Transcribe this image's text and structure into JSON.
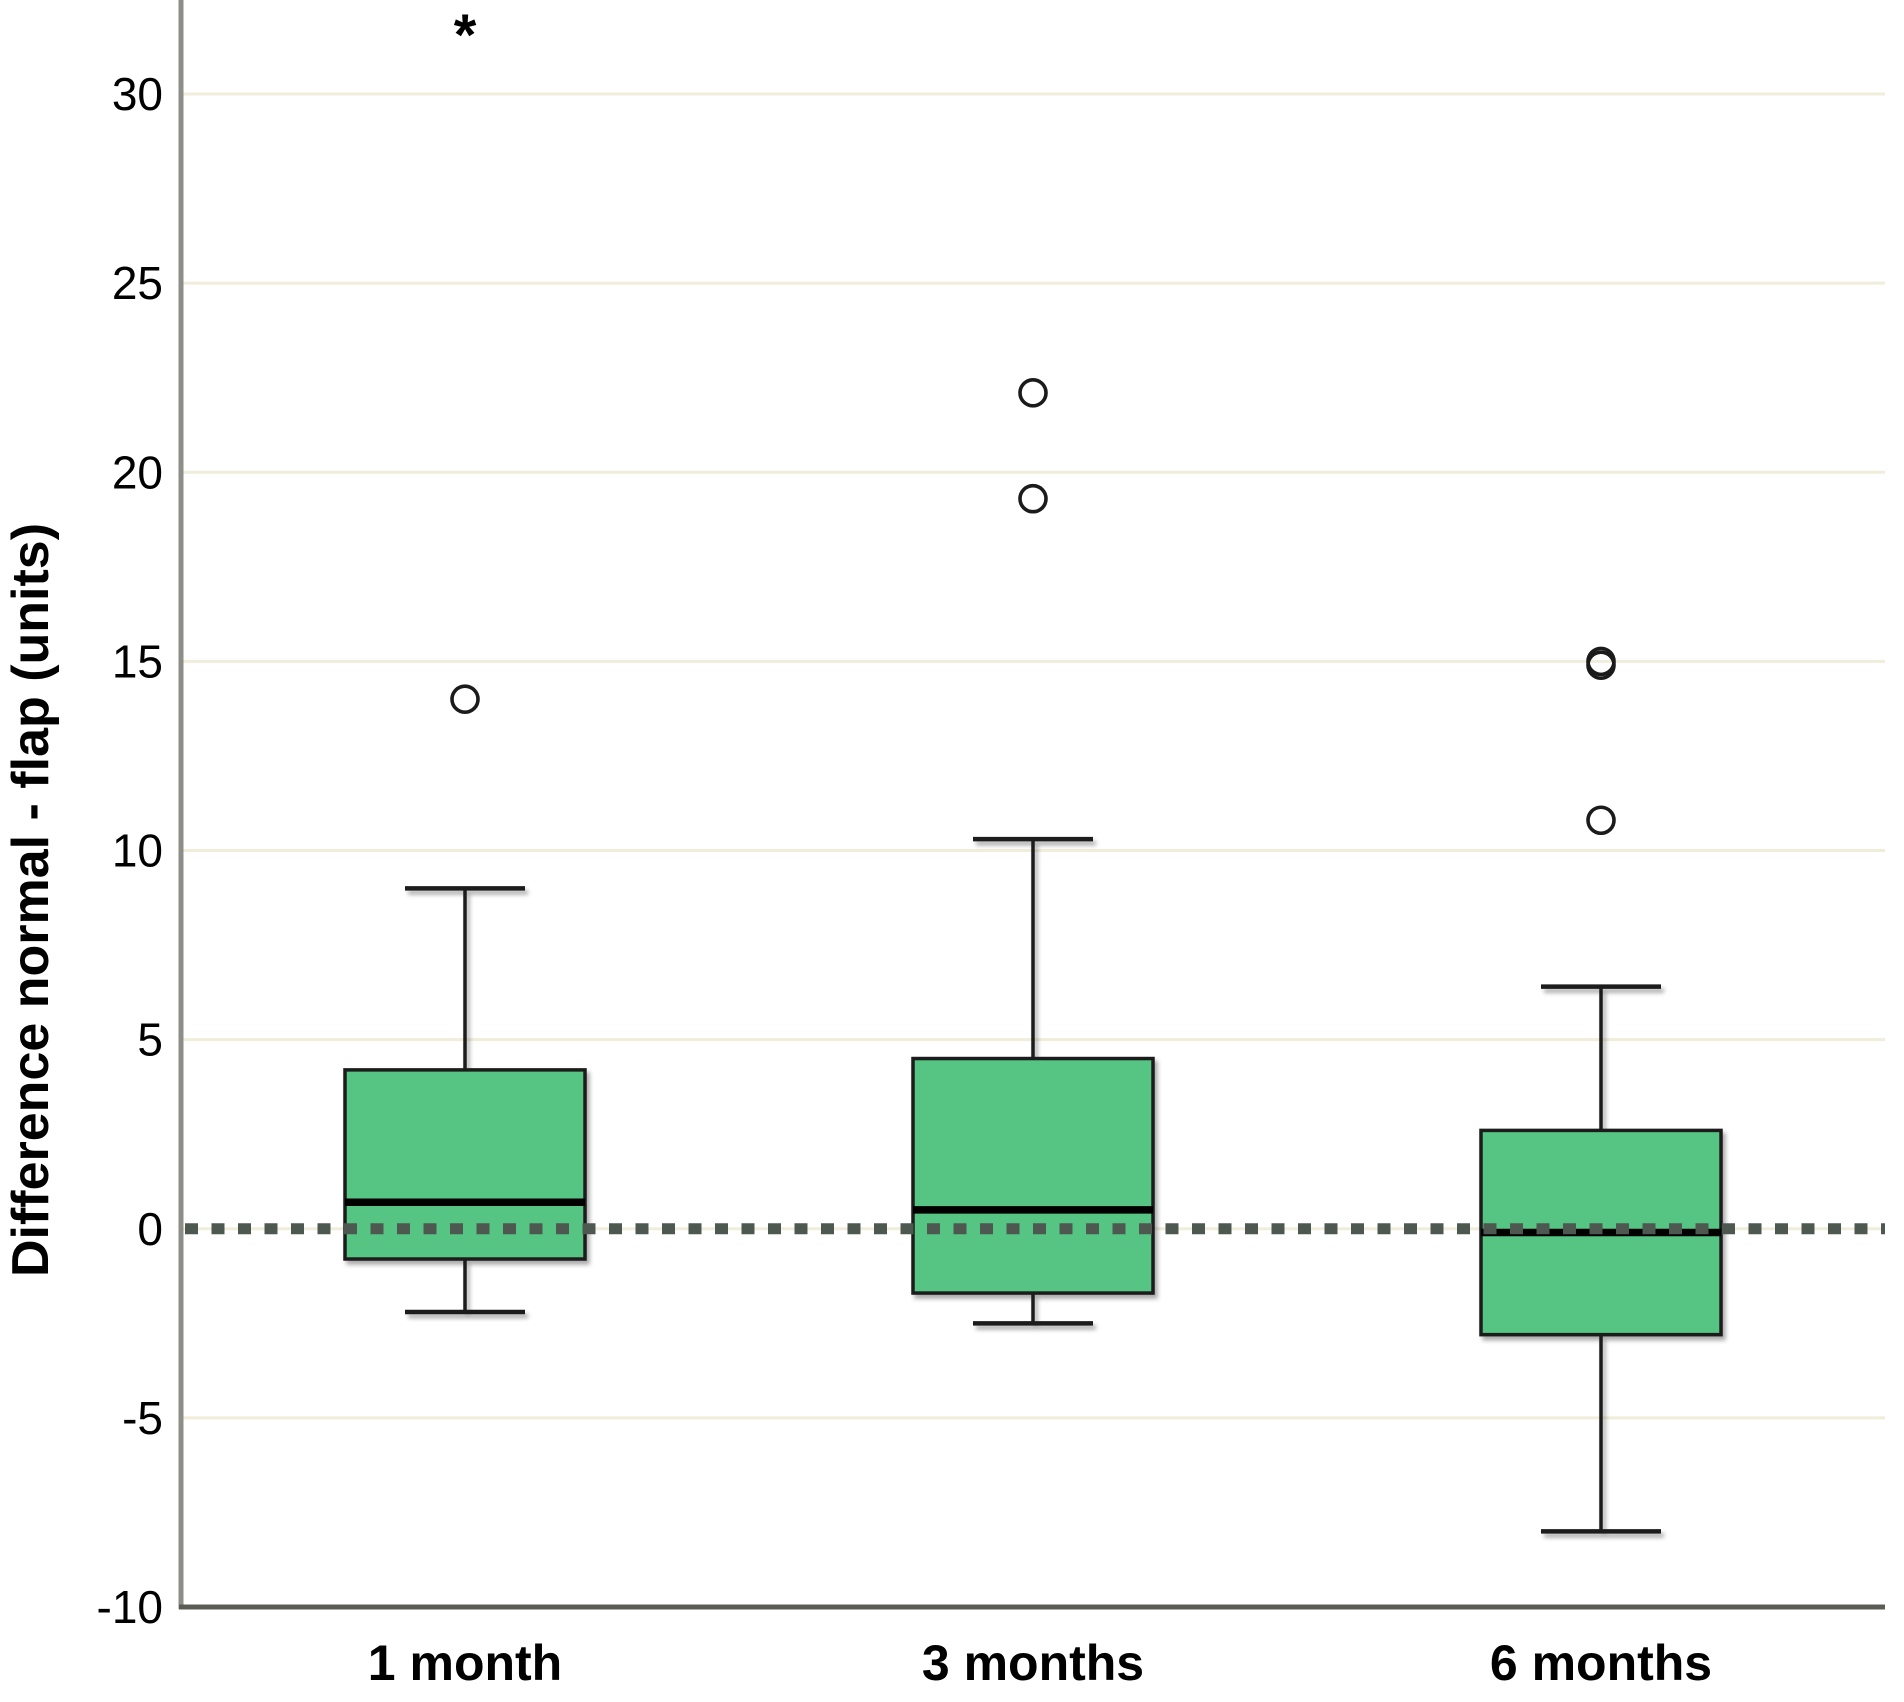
{
  "figure": {
    "ylabel": "Difference normal - flap (units)"
  },
  "chart_data": {
    "type": "boxplot",
    "title": "",
    "xlabel": "",
    "ylabel": "Difference normal - flap (units)",
    "categories": [
      "1 month",
      "3 months",
      "6 months"
    ],
    "yticks": [
      30,
      25,
      20,
      15,
      10,
      5,
      0,
      -5,
      -10
    ],
    "ylim": [
      -10,
      32.5
    ],
    "grid": true,
    "reference_line_y": 0,
    "series": [
      {
        "name": "1 month",
        "whisker_low": -2.2,
        "q1": -0.8,
        "median": 0.7,
        "q3": 4.2,
        "whisker_high": 9.0,
        "outliers": [
          14.0
        ],
        "extreme_outliers": [
          31.9
        ]
      },
      {
        "name": "3 months",
        "whisker_low": -2.5,
        "q1": -1.7,
        "median": 0.5,
        "q3": 4.5,
        "whisker_high": 10.3,
        "outliers": [
          19.3,
          22.1
        ],
        "extreme_outliers": []
      },
      {
        "name": "6 months",
        "whisker_low": -8.0,
        "q1": -2.8,
        "median": -0.1,
        "q3": 2.6,
        "whisker_high": 6.4,
        "outliers": [
          10.8,
          14.9,
          15.0
        ],
        "extreme_outliers": []
      }
    ],
    "colors": {
      "background": "#ffffff",
      "box_fill": "#56c483",
      "box_border": "#1b1b1b",
      "median": "#000000",
      "whisker": "#1b1b1b",
      "gridline": "#f1eddb",
      "zero_line": "#4d5851",
      "y_axis": "#8e8e88",
      "x_axis": "#5c5c54",
      "text": "#000000",
      "outlier": "#1b1b1b"
    }
  }
}
